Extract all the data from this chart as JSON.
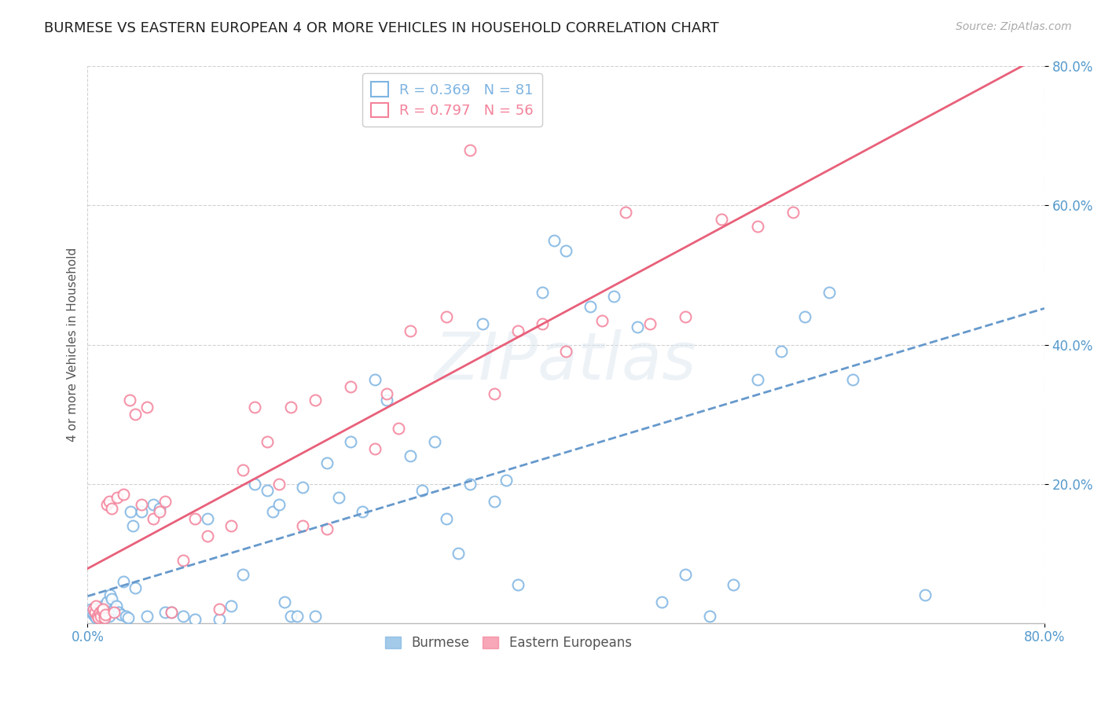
{
  "title": "BURMESE VS EASTERN EUROPEAN 4 OR MORE VEHICLES IN HOUSEHOLD CORRELATION CHART",
  "source": "Source: ZipAtlas.com",
  "watermark": "ZIPatlas",
  "ylabel": "4 or more Vehicles in Household",
  "ytick_labels": [
    "20.0%",
    "40.0%",
    "60.0%",
    "80.0%"
  ],
  "ytick_values": [
    0.2,
    0.4,
    0.6,
    0.8
  ],
  "xlim": [
    0.0,
    0.8
  ],
  "ylim": [
    0.0,
    0.8
  ],
  "burmese_R": 0.369,
  "burmese_N": 81,
  "eastern_R": 0.797,
  "eastern_N": 56,
  "burmese_color": "#7EB4E2",
  "eastern_color": "#F4829A",
  "burmese_line_color": "#6699CC",
  "eastern_line_color": "#E8607A",
  "axis_label_color": "#5599CC",
  "burmese_points_x": [
    0.003,
    0.004,
    0.005,
    0.006,
    0.007,
    0.008,
    0.009,
    0.01,
    0.011,
    0.012,
    0.013,
    0.014,
    0.015,
    0.016,
    0.017,
    0.018,
    0.019,
    0.02,
    0.022,
    0.024,
    0.026,
    0.028,
    0.03,
    0.032,
    0.034,
    0.036,
    0.038,
    0.04,
    0.045,
    0.05,
    0.055,
    0.06,
    0.065,
    0.07,
    0.08,
    0.09,
    0.1,
    0.11,
    0.12,
    0.13,
    0.14,
    0.15,
    0.155,
    0.16,
    0.165,
    0.17,
    0.175,
    0.18,
    0.19,
    0.2,
    0.21,
    0.22,
    0.23,
    0.24,
    0.25,
    0.27,
    0.28,
    0.29,
    0.3,
    0.31,
    0.32,
    0.33,
    0.34,
    0.35,
    0.36,
    0.38,
    0.39,
    0.4,
    0.42,
    0.44,
    0.46,
    0.48,
    0.5,
    0.52,
    0.54,
    0.56,
    0.58,
    0.6,
    0.62,
    0.64,
    0.7
  ],
  "burmese_points_y": [
    0.02,
    0.015,
    0.012,
    0.01,
    0.008,
    0.018,
    0.01,
    0.022,
    0.015,
    0.012,
    0.025,
    0.018,
    0.02,
    0.03,
    0.015,
    0.01,
    0.04,
    0.035,
    0.02,
    0.025,
    0.015,
    0.012,
    0.06,
    0.01,
    0.008,
    0.16,
    0.14,
    0.05,
    0.16,
    0.01,
    0.17,
    0.165,
    0.015,
    0.015,
    0.01,
    0.005,
    0.15,
    0.005,
    0.025,
    0.07,
    0.2,
    0.19,
    0.16,
    0.17,
    0.03,
    0.01,
    0.01,
    0.195,
    0.01,
    0.23,
    0.18,
    0.26,
    0.16,
    0.35,
    0.32,
    0.24,
    0.19,
    0.26,
    0.15,
    0.1,
    0.2,
    0.43,
    0.175,
    0.205,
    0.055,
    0.475,
    0.55,
    0.535,
    0.455,
    0.47,
    0.425,
    0.03,
    0.07,
    0.01,
    0.055,
    0.35,
    0.39,
    0.44,
    0.475,
    0.35,
    0.04
  ],
  "eastern_points_x": [
    0.005,
    0.006,
    0.007,
    0.008,
    0.009,
    0.01,
    0.011,
    0.012,
    0.013,
    0.014,
    0.015,
    0.016,
    0.018,
    0.02,
    0.022,
    0.025,
    0.03,
    0.035,
    0.04,
    0.045,
    0.05,
    0.055,
    0.06,
    0.065,
    0.07,
    0.08,
    0.09,
    0.1,
    0.11,
    0.12,
    0.13,
    0.14,
    0.15,
    0.16,
    0.17,
    0.18,
    0.19,
    0.2,
    0.22,
    0.24,
    0.25,
    0.26,
    0.27,
    0.3,
    0.32,
    0.34,
    0.36,
    0.38,
    0.4,
    0.43,
    0.45,
    0.47,
    0.5,
    0.53,
    0.56,
    0.59
  ],
  "eastern_points_y": [
    0.02,
    0.015,
    0.025,
    0.01,
    0.008,
    0.015,
    0.01,
    0.018,
    0.02,
    0.008,
    0.012,
    0.17,
    0.175,
    0.165,
    0.015,
    0.18,
    0.185,
    0.32,
    0.3,
    0.17,
    0.31,
    0.15,
    0.16,
    0.175,
    0.015,
    0.09,
    0.15,
    0.125,
    0.02,
    0.14,
    0.22,
    0.31,
    0.26,
    0.2,
    0.31,
    0.14,
    0.32,
    0.135,
    0.34,
    0.25,
    0.33,
    0.28,
    0.42,
    0.44,
    0.68,
    0.33,
    0.42,
    0.43,
    0.39,
    0.435,
    0.59,
    0.43,
    0.44,
    0.58,
    0.57,
    0.59
  ]
}
